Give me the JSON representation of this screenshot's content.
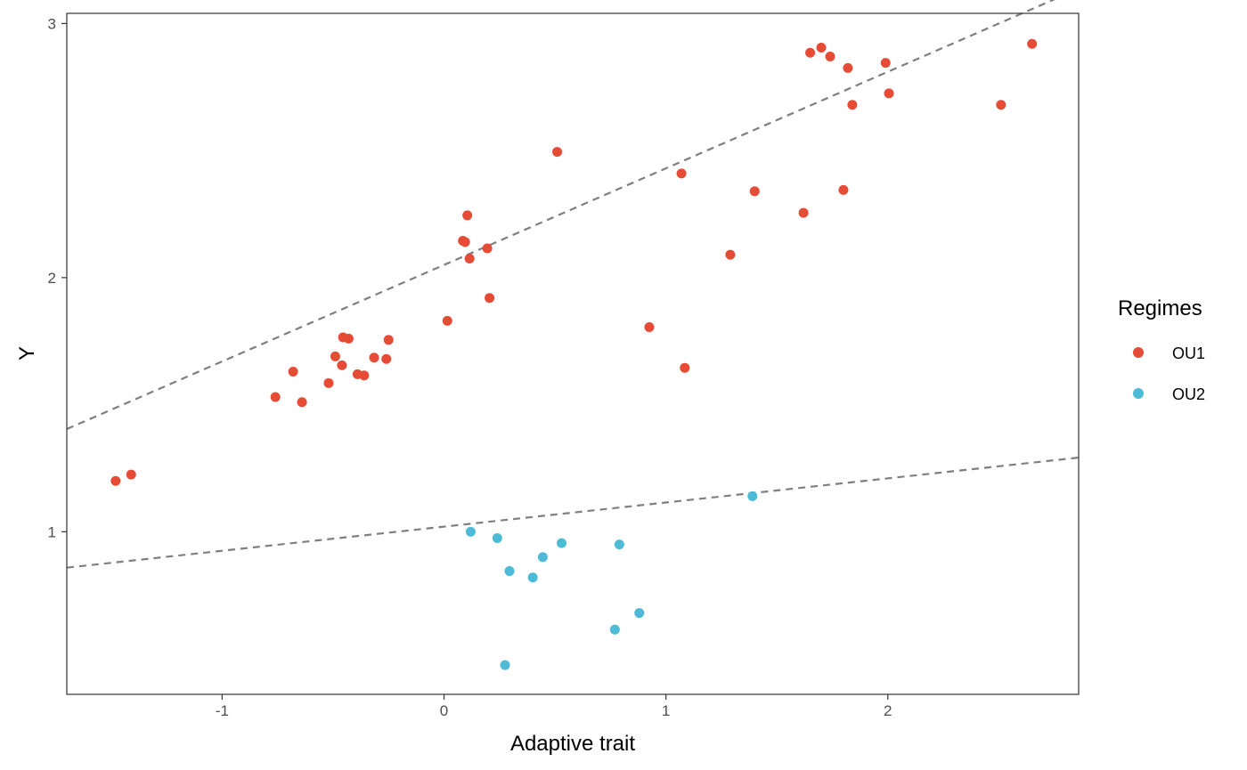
{
  "chart_data": {
    "type": "scatter",
    "xlabel": "Adaptive trait",
    "ylabel": "Y",
    "xlim": [
      -1.7,
      2.86
    ],
    "ylim": [
      0.36,
      3.04
    ],
    "xticks": [
      -1,
      0,
      1,
      2
    ],
    "yticks": [
      1,
      2,
      3
    ],
    "x_tick_labels": [
      "-1",
      "0",
      "1",
      "2"
    ],
    "y_tick_labels": [
      "1",
      "2",
      "3"
    ],
    "grid": false,
    "legend": {
      "title": "Regimes",
      "position": "right"
    },
    "series": [
      {
        "name": "OU1",
        "color": "#E64B35",
        "points": [
          [
            -1.48,
            1.2
          ],
          [
            -1.41,
            1.225
          ],
          [
            -0.76,
            1.53
          ],
          [
            -0.68,
            1.63
          ],
          [
            -0.64,
            1.51
          ],
          [
            -0.52,
            1.585
          ],
          [
            -0.49,
            1.69
          ],
          [
            -0.46,
            1.655
          ],
          [
            -0.455,
            1.765
          ],
          [
            -0.43,
            1.76
          ],
          [
            -0.39,
            1.62
          ],
          [
            -0.36,
            1.615
          ],
          [
            -0.315,
            1.685
          ],
          [
            -0.26,
            1.68
          ],
          [
            -0.25,
            1.755
          ],
          [
            0.015,
            1.83
          ],
          [
            0.085,
            2.145
          ],
          [
            0.095,
            2.14
          ],
          [
            0.105,
            2.245
          ],
          [
            0.115,
            2.075
          ],
          [
            0.195,
            2.115
          ],
          [
            0.205,
            1.92
          ],
          [
            0.51,
            2.495
          ],
          [
            0.925,
            1.805
          ],
          [
            1.07,
            2.41
          ],
          [
            1.085,
            1.645
          ],
          [
            1.29,
            2.09
          ],
          [
            1.4,
            2.34
          ],
          [
            1.62,
            2.255
          ],
          [
            1.65,
            2.885
          ],
          [
            1.7,
            2.905
          ],
          [
            1.74,
            2.87
          ],
          [
            1.8,
            2.345
          ],
          [
            1.82,
            2.825
          ],
          [
            1.84,
            2.68
          ],
          [
            1.99,
            2.845
          ],
          [
            2.005,
            2.725
          ],
          [
            2.51,
            2.68
          ],
          [
            2.65,
            2.92
          ]
        ]
      },
      {
        "name": "OU2",
        "color": "#4DBBD5",
        "points": [
          [
            0.12,
            1.0
          ],
          [
            0.24,
            0.975
          ],
          [
            0.275,
            0.475
          ],
          [
            0.295,
            0.845
          ],
          [
            0.4,
            0.82
          ],
          [
            0.445,
            0.9
          ],
          [
            0.53,
            0.955
          ],
          [
            0.77,
            0.615
          ],
          [
            0.79,
            0.95
          ],
          [
            0.88,
            0.68
          ],
          [
            1.39,
            1.14
          ]
        ]
      }
    ],
    "reference_lines": [
      {
        "style": "dashed",
        "color": "#7f7f7f",
        "intercept": 2.05,
        "slope": 0.38,
        "x_range": [
          -1.7,
          2.86
        ]
      },
      {
        "style": "dashed",
        "color": "#7f7f7f",
        "intercept": 1.02,
        "slope": 0.095,
        "x_range": [
          -1.7,
          2.86
        ]
      }
    ]
  }
}
